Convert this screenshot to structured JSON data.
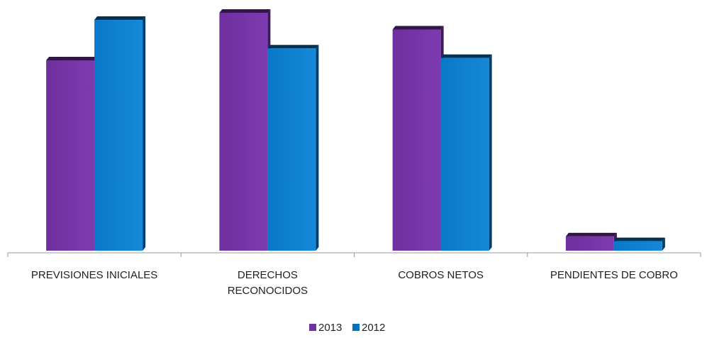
{
  "chart_data": {
    "type": "bar",
    "title": "",
    "xlabel": "",
    "ylabel": "",
    "categories": [
      [
        "PREVISIONES INICIALES"
      ],
      [
        "DERECHOS",
        "RECONOCIDOS"
      ],
      [
        "COBROS NETOS"
      ],
      [
        "PENDIENTES DE COBRO"
      ]
    ],
    "series": [
      {
        "name": "2013",
        "values": [
          80,
          100,
          93,
          6
        ],
        "color": "#7030A0"
      },
      {
        "name": "2012",
        "values": [
          97,
          85,
          81,
          4
        ],
        "color": "#0070C0"
      }
    ],
    "ylim": [
      0,
      100
    ],
    "grid": false,
    "legend_position": "bottom",
    "style": "3d-clustered-bar"
  }
}
